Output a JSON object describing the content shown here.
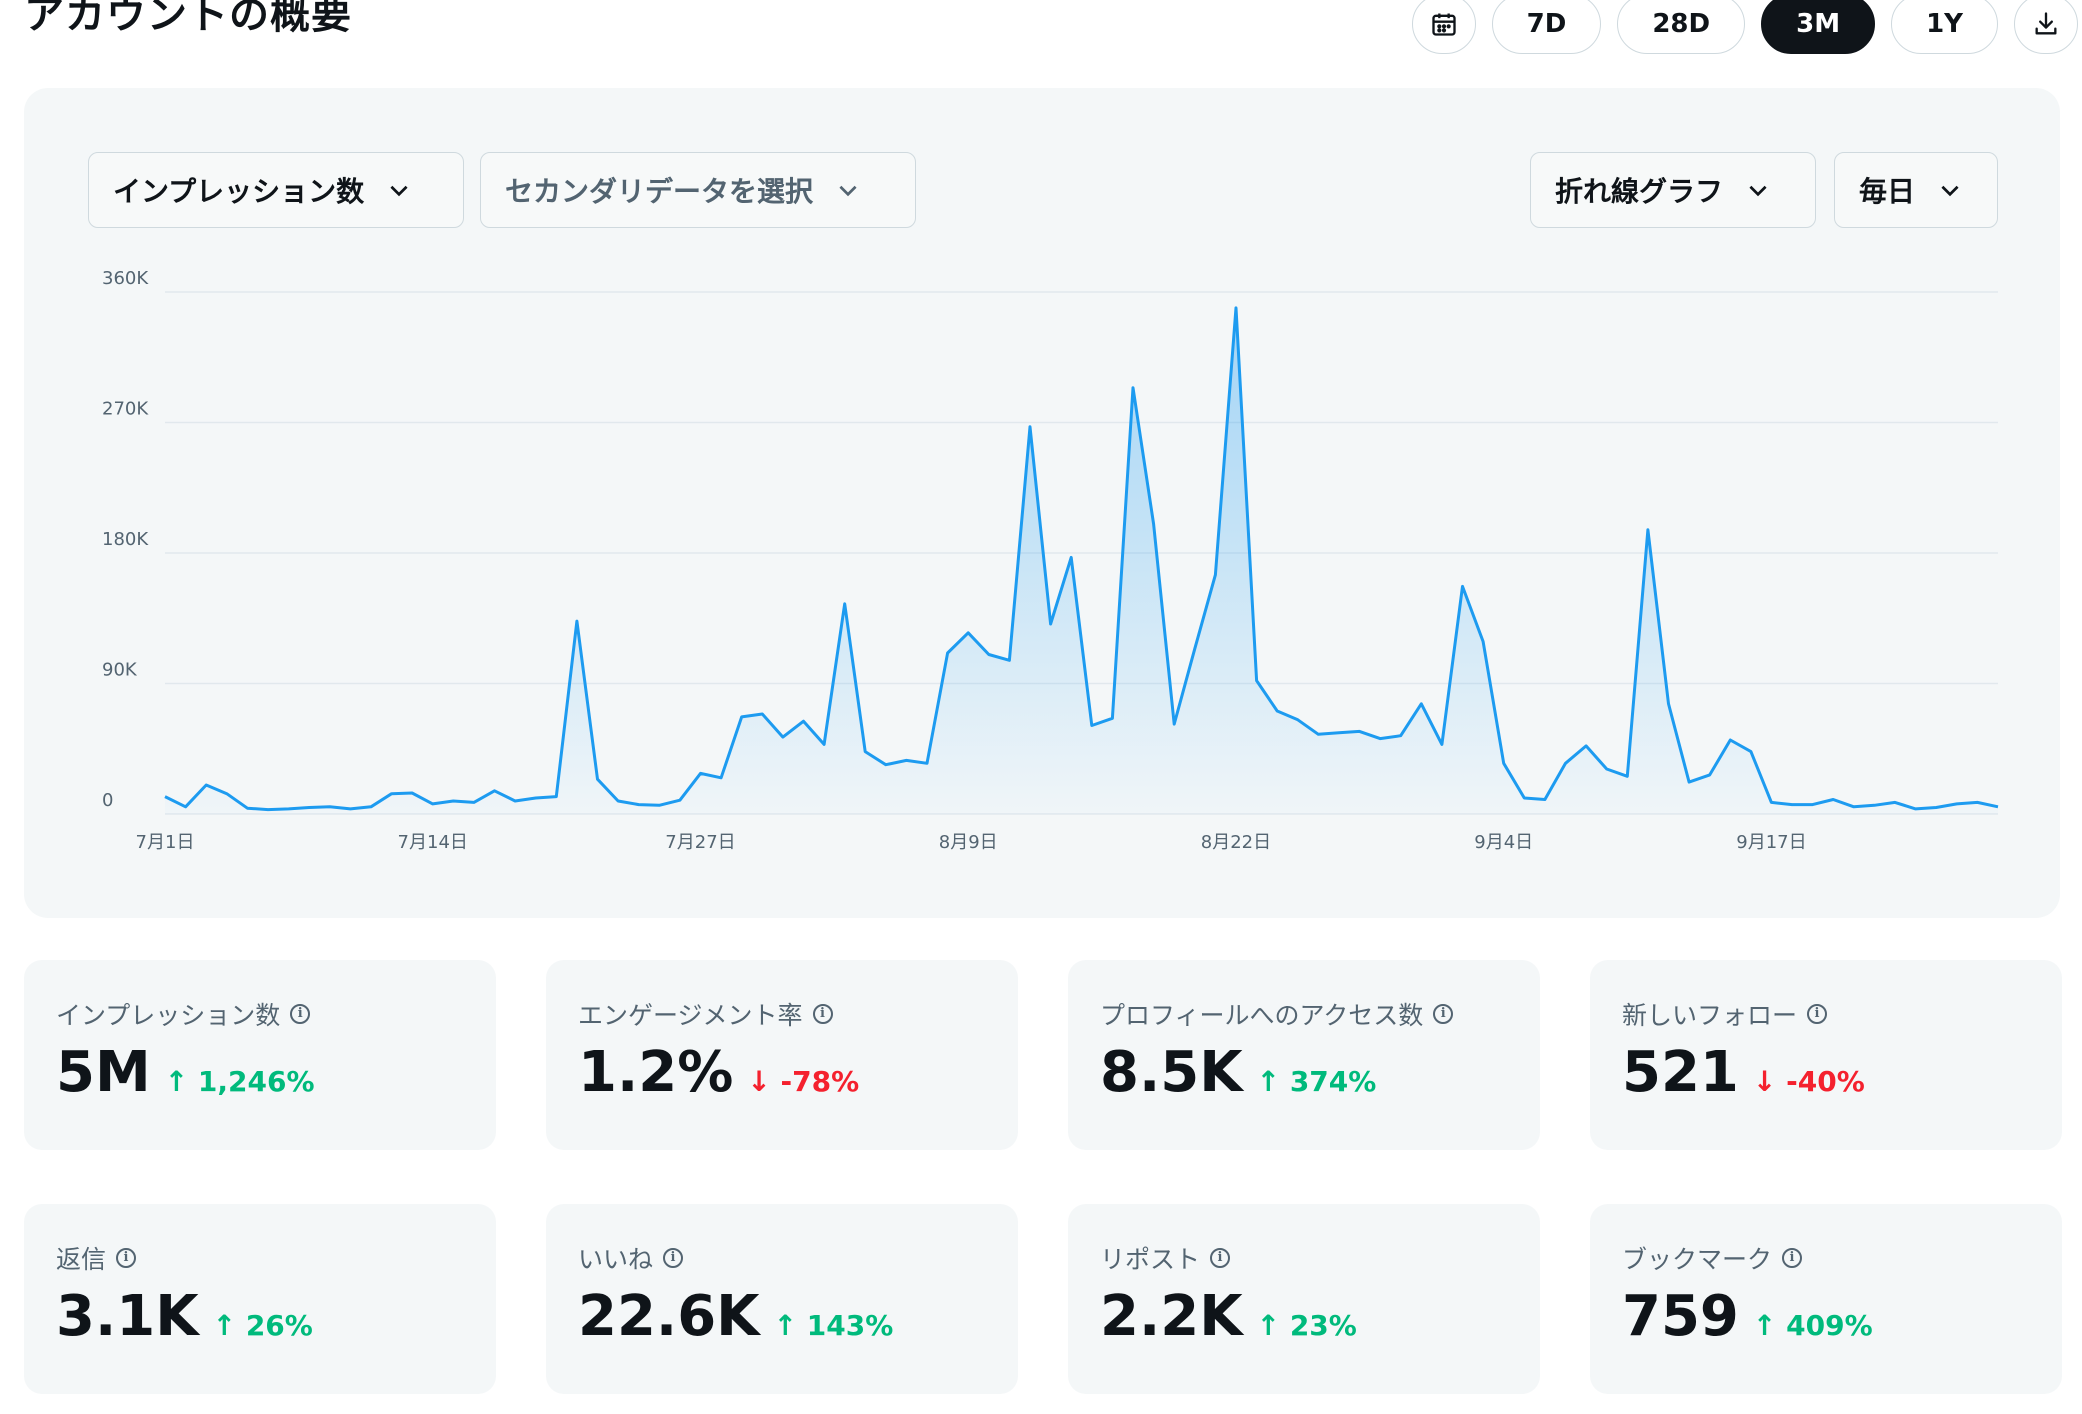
{
  "page_title": "アカウントの概要",
  "toolbar": {
    "calendar_icon": "calendar-icon",
    "ranges": [
      "7D",
      "28D",
      "3M",
      "1Y"
    ],
    "active_range": "3M",
    "download_icon": "download-icon"
  },
  "controls": {
    "metric": "インプレッション数",
    "secondary": "セカンダリデータを選択",
    "chart_type": "折れ線グラフ",
    "interval": "毎日"
  },
  "colors": {
    "line": "#1d9bf0",
    "up": "#00ba7c",
    "down": "#f4212e",
    "active_button": "#0f1419"
  },
  "chart_data": {
    "type": "area",
    "ylim": [
      0,
      360000
    ],
    "y_ticks": [
      "0",
      "90K",
      "180K",
      "270K",
      "360K"
    ],
    "x_ticks": [
      "7月1日",
      "7月14日",
      "7月27日",
      "8月9日",
      "8月22日",
      "9月4日",
      "9月17日"
    ],
    "x_tick_index": [
      0,
      13,
      26,
      39,
      52,
      65,
      78
    ],
    "series": [
      {
        "values": [
          12000,
          5000,
          20000,
          14000,
          4000,
          3000,
          3500,
          4500,
          5000,
          3500,
          5000,
          14000,
          14500,
          7000,
          9000,
          8000,
          16000,
          9000,
          11000,
          12000,
          133000,
          24000,
          9000,
          6500,
          6000,
          9500,
          28000,
          25000,
          67000,
          69000,
          53000,
          64000,
          48000,
          145000,
          43000,
          34000,
          37000,
          35000,
          111000,
          125000,
          110000,
          106000,
          267000,
          131000,
          177000,
          61000,
          66000,
          294000,
          200000,
          62000,
          114000,
          165000,
          349000,
          92000,
          71000,
          65000,
          55000,
          56000,
          57000,
          52000,
          54000,
          76000,
          48000,
          157000,
          119000,
          35000,
          11000,
          10000,
          35000,
          47000,
          31000,
          26000,
          196000,
          76000,
          22000,
          27000,
          51000,
          43000,
          8000,
          6500,
          6500,
          10000,
          5000,
          6000,
          8000,
          3500,
          4500,
          7000,
          8000,
          5000
        ]
      }
    ]
  },
  "cards": [
    {
      "label": "インプレッション数",
      "value": "5M",
      "change": "1,246%",
      "dir": "up"
    },
    {
      "label": "エンゲージメント率",
      "value": "1.2%",
      "change": "-78%",
      "dir": "down"
    },
    {
      "label": "プロフィールへのアクセス数",
      "value": "8.5K",
      "change": "374%",
      "dir": "up"
    },
    {
      "label": "新しいフォロー",
      "value": "521",
      "change": "-40%",
      "dir": "down"
    },
    {
      "label": "返信",
      "value": "3.1K",
      "change": "26%",
      "dir": "up"
    },
    {
      "label": "いいね",
      "value": "22.6K",
      "change": "143%",
      "dir": "up"
    },
    {
      "label": "リポスト",
      "value": "2.2K",
      "change": "23%",
      "dir": "up"
    },
    {
      "label": "ブックマーク",
      "value": "759",
      "change": "409%",
      "dir": "up"
    }
  ]
}
